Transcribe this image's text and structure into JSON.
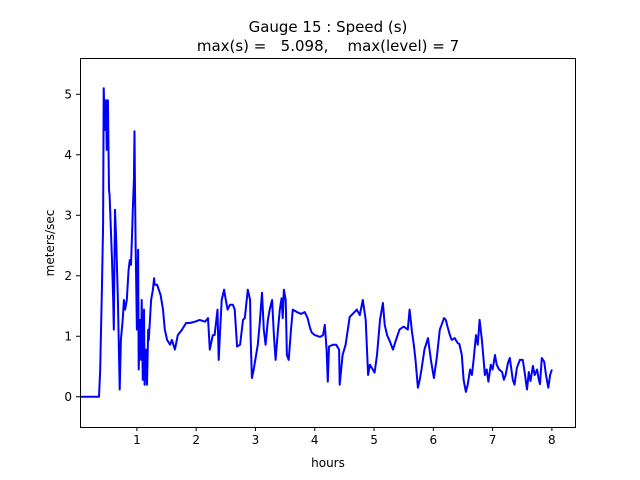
{
  "chart_data": {
    "type": "line",
    "title": "Gauge 15 : Speed (s)",
    "subtitle": "max(s) =   5.098,    max(level) = 7",
    "xlabel": "hours",
    "ylabel": "meters/sec",
    "xlim": [
      0.04,
      8.39
    ],
    "ylim": [
      -0.5,
      5.6
    ],
    "xticks": [
      1,
      2,
      3,
      4,
      5,
      6,
      7,
      8
    ],
    "yticks": [
      0,
      1,
      2,
      3,
      4,
      5
    ],
    "grid": false,
    "color": "#0000ff",
    "series": [
      {
        "name": "speed",
        "points": [
          [
            0.04,
            0
          ],
          [
            0.36,
            0
          ],
          [
            0.38,
            0.45
          ],
          [
            0.39,
            0.86
          ],
          [
            0.41,
            1.77
          ],
          [
            0.43,
            2.84
          ],
          [
            0.44,
            5.1
          ],
          [
            0.46,
            4.41
          ],
          [
            0.48,
            4.9
          ],
          [
            0.49,
            4.08
          ],
          [
            0.51,
            4.9
          ],
          [
            0.53,
            3.42
          ],
          [
            0.54,
            3.33
          ],
          [
            0.58,
            2.26
          ],
          [
            0.6,
            1.6
          ],
          [
            0.61,
            1.11
          ],
          [
            0.63,
            3.09
          ],
          [
            0.65,
            2.59
          ],
          [
            0.68,
            1.6
          ],
          [
            0.71,
            0.12
          ],
          [
            0.73,
            0.94
          ],
          [
            0.76,
            1.27
          ],
          [
            0.78,
            1.6
          ],
          [
            0.8,
            1.44
          ],
          [
            0.83,
            1.6
          ],
          [
            0.86,
            2.1
          ],
          [
            0.88,
            2.26
          ],
          [
            0.9,
            2.18
          ],
          [
            0.92,
            2.76
          ],
          [
            0.93,
            3.09
          ],
          [
            0.95,
            3.58
          ],
          [
            0.96,
            4.39
          ],
          [
            0.97,
            3.25
          ],
          [
            0.98,
            2.43
          ],
          [
            1.0,
            1.11
          ],
          [
            1.02,
            2.43
          ],
          [
            1.03,
            0.45
          ],
          [
            1.05,
            1.27
          ],
          [
            1.07,
            0.61
          ],
          [
            1.08,
            1.6
          ],
          [
            1.1,
            0.28
          ],
          [
            1.12,
            1.44
          ],
          [
            1.13,
            0.2
          ],
          [
            1.15,
            0.78
          ],
          [
            1.17,
            0.2
          ],
          [
            1.19,
            1.11
          ],
          [
            1.2,
            0.94
          ],
          [
            1.24,
            1.6
          ],
          [
            1.27,
            1.77
          ],
          [
            1.29,
            1.96
          ],
          [
            1.3,
            1.85
          ],
          [
            1.34,
            1.85
          ],
          [
            1.37,
            1.77
          ],
          [
            1.4,
            1.68
          ],
          [
            1.44,
            1.44
          ],
          [
            1.47,
            1.11
          ],
          [
            1.51,
            0.94
          ],
          [
            1.56,
            0.86
          ],
          [
            1.59,
            0.94
          ],
          [
            1.64,
            0.78
          ],
          [
            1.69,
            1.02
          ],
          [
            1.76,
            1.11
          ],
          [
            1.83,
            1.22
          ],
          [
            1.89,
            1.22
          ],
          [
            1.98,
            1.24
          ],
          [
            2.06,
            1.27
          ],
          [
            2.15,
            1.24
          ],
          [
            2.2,
            1.3
          ],
          [
            2.23,
            0.78
          ],
          [
            2.28,
            1.02
          ],
          [
            2.31,
            1.02
          ],
          [
            2.36,
            1.44
          ],
          [
            2.38,
            0.61
          ],
          [
            2.4,
            1.02
          ],
          [
            2.43,
            1.6
          ],
          [
            2.47,
            1.77
          ],
          [
            2.5,
            1.6
          ],
          [
            2.53,
            1.44
          ],
          [
            2.57,
            1.52
          ],
          [
            2.62,
            1.52
          ],
          [
            2.65,
            1.44
          ],
          [
            2.69,
            0.83
          ],
          [
            2.74,
            0.86
          ],
          [
            2.79,
            1.27
          ],
          [
            2.82,
            1.3
          ],
          [
            2.87,
            1.77
          ],
          [
            2.91,
            1.6
          ],
          [
            2.92,
            0.94
          ],
          [
            2.94,
            0.31
          ],
          [
            2.97,
            0.45
          ],
          [
            3.01,
            0.69
          ],
          [
            3.04,
            0.86
          ],
          [
            3.07,
            1.19
          ],
          [
            3.11,
            1.72
          ],
          [
            3.14,
            1.11
          ],
          [
            3.17,
            0.86
          ],
          [
            3.21,
            1.27
          ],
          [
            3.24,
            1.44
          ],
          [
            3.28,
            1.6
          ],
          [
            3.31,
            1.02
          ],
          [
            3.34,
            0.61
          ],
          [
            3.38,
            1.11
          ],
          [
            3.41,
            1.44
          ],
          [
            3.44,
            1.63
          ],
          [
            3.46,
            1.3
          ],
          [
            3.48,
            1.77
          ],
          [
            3.51,
            1.6
          ],
          [
            3.53,
            0.69
          ],
          [
            3.56,
            0.61
          ],
          [
            3.6,
            1.11
          ],
          [
            3.63,
            1.44
          ],
          [
            3.7,
            1.4
          ],
          [
            3.77,
            1.37
          ],
          [
            3.83,
            1.4
          ],
          [
            3.88,
            1.3
          ],
          [
            3.92,
            1.14
          ],
          [
            3.95,
            1.06
          ],
          [
            4.0,
            1.02
          ],
          [
            4.09,
            0.99
          ],
          [
            4.14,
            1.02
          ],
          [
            4.17,
            1.19
          ],
          [
            4.2,
            0.78
          ],
          [
            4.22,
            0.25
          ],
          [
            4.24,
            0.83
          ],
          [
            4.31,
            0.86
          ],
          [
            4.36,
            0.86
          ],
          [
            4.41,
            0.78
          ],
          [
            4.42,
            0.2
          ],
          [
            4.47,
            0.69
          ],
          [
            4.52,
            0.86
          ],
          [
            4.59,
            1.32
          ],
          [
            4.66,
            1.39
          ],
          [
            4.71,
            1.44
          ],
          [
            4.76,
            1.35
          ],
          [
            4.81,
            1.6
          ],
          [
            4.86,
            1.27
          ],
          [
            4.9,
            0.36
          ],
          [
            4.93,
            0.53
          ],
          [
            4.96,
            0.48
          ],
          [
            5.01,
            0.4
          ],
          [
            5.05,
            0.69
          ],
          [
            5.1,
            1.27
          ],
          [
            5.15,
            1.55
          ],
          [
            5.18,
            1.19
          ],
          [
            5.22,
            1.02
          ],
          [
            5.27,
            0.91
          ],
          [
            5.32,
            0.78
          ],
          [
            5.37,
            0.94
          ],
          [
            5.43,
            1.11
          ],
          [
            5.5,
            1.16
          ],
          [
            5.57,
            1.11
          ],
          [
            5.6,
            1.44
          ],
          [
            5.64,
            1.07
          ],
          [
            5.67,
            0.86
          ],
          [
            5.7,
            0.61
          ],
          [
            5.74,
            0.15
          ],
          [
            5.77,
            0.28
          ],
          [
            5.8,
            0.45
          ],
          [
            5.85,
            0.78
          ],
          [
            5.91,
            0.97
          ],
          [
            5.96,
            0.61
          ],
          [
            6.01,
            0.31
          ],
          [
            6.06,
            0.66
          ],
          [
            6.11,
            1.11
          ],
          [
            6.14,
            1.19
          ],
          [
            6.18,
            1.3
          ],
          [
            6.21,
            1.27
          ],
          [
            6.24,
            1.16
          ],
          [
            6.28,
            1.02
          ],
          [
            6.31,
            0.94
          ],
          [
            6.36,
            0.97
          ],
          [
            6.41,
            0.89
          ],
          [
            6.44,
            0.87
          ],
          [
            6.48,
            0.69
          ],
          [
            6.51,
            0.28
          ],
          [
            6.55,
            0.08
          ],
          [
            6.58,
            0.2
          ],
          [
            6.62,
            0.45
          ],
          [
            6.65,
            0.36
          ],
          [
            6.68,
            0.61
          ],
          [
            6.72,
            1.02
          ],
          [
            6.75,
            0.86
          ],
          [
            6.78,
            1.27
          ],
          [
            6.82,
            0.94
          ],
          [
            6.87,
            0.36
          ],
          [
            6.9,
            0.45
          ],
          [
            6.93,
            0.25
          ],
          [
            6.97,
            0.53
          ],
          [
            7.0,
            0.45
          ],
          [
            7.04,
            0.69
          ],
          [
            7.07,
            0.53
          ],
          [
            7.11,
            0.45
          ],
          [
            7.16,
            0.41
          ],
          [
            7.19,
            0.28
          ],
          [
            7.22,
            0.36
          ],
          [
            7.26,
            0.56
          ],
          [
            7.29,
            0.64
          ],
          [
            7.34,
            0.28
          ],
          [
            7.37,
            0.2
          ],
          [
            7.41,
            0.48
          ],
          [
            7.46,
            0.61
          ],
          [
            7.51,
            0.61
          ],
          [
            7.54,
            0.41
          ],
          [
            7.58,
            0.12
          ],
          [
            7.61,
            0.41
          ],
          [
            7.64,
            0.26
          ],
          [
            7.68,
            0.51
          ],
          [
            7.71,
            0.36
          ],
          [
            7.75,
            0.45
          ],
          [
            7.78,
            0.28
          ],
          [
            7.8,
            0.21
          ],
          [
            7.83,
            0.64
          ],
          [
            7.87,
            0.58
          ],
          [
            7.9,
            0.36
          ],
          [
            7.94,
            0.15
          ],
          [
            7.97,
            0.36
          ],
          [
            8.0,
            0.45
          ]
        ]
      }
    ]
  }
}
